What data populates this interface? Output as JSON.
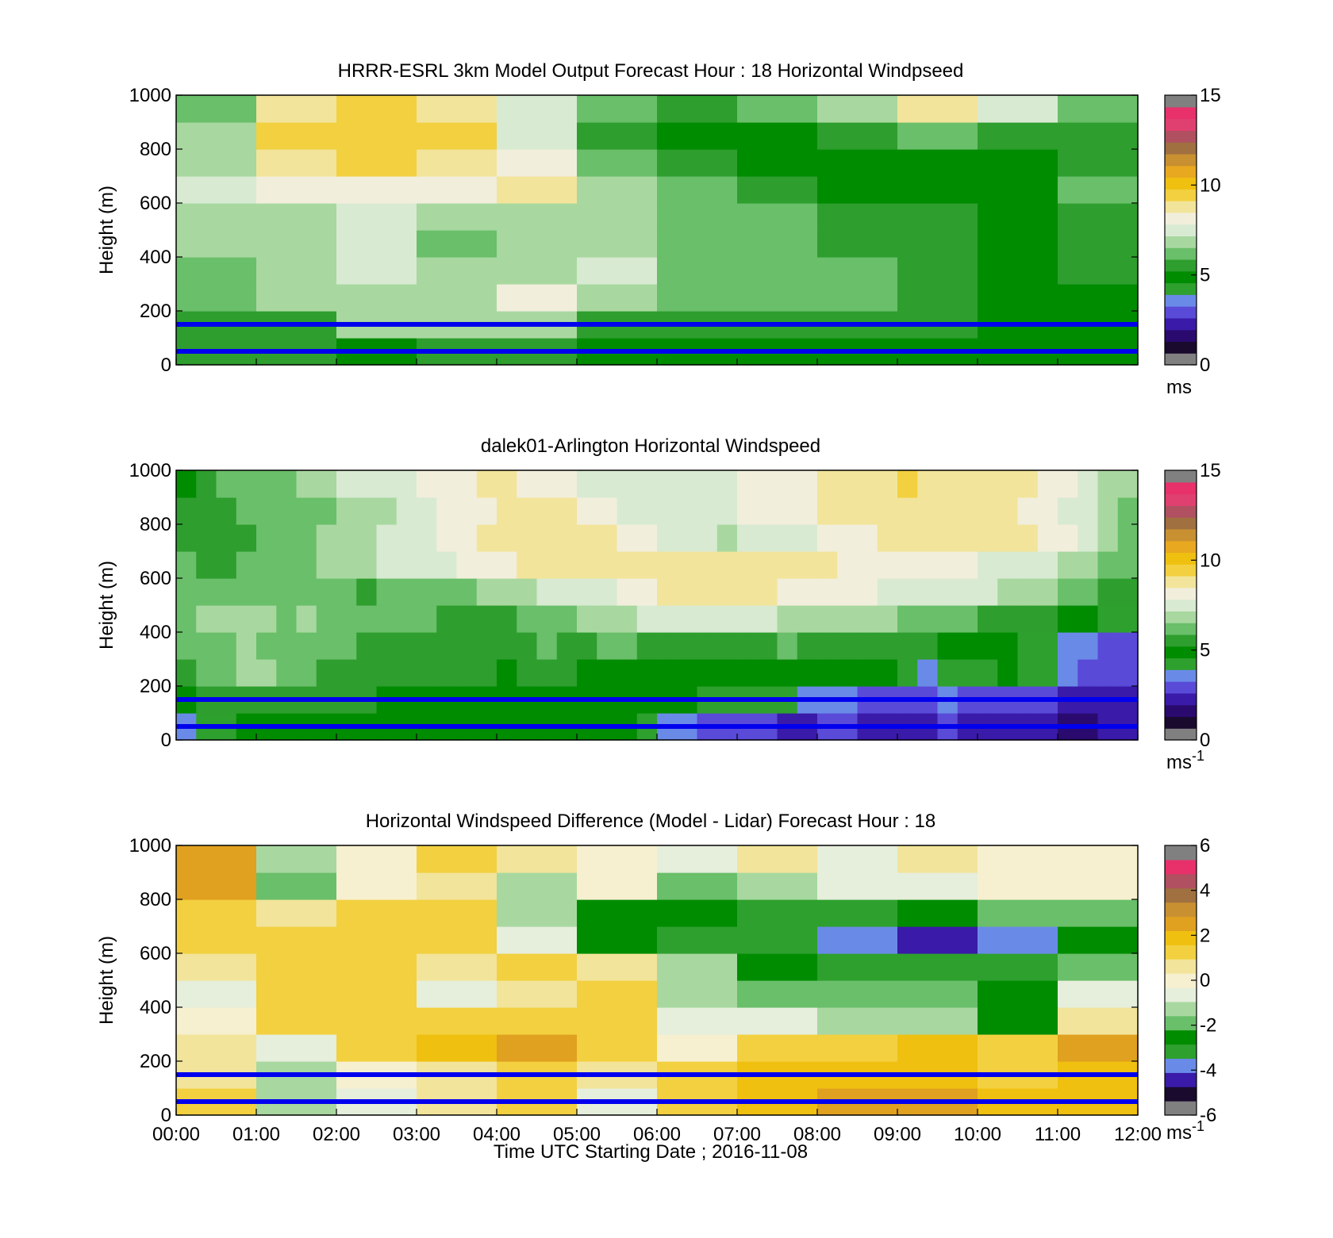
{
  "colormap_speed": [
    "#808080",
    "#1a0a2e",
    "#2a0a6e",
    "#3a1aa8",
    "#5a4ad8",
    "#6a8ae8",
    "#2ea02e",
    "#008c00",
    "#2e9e2e",
    "#6abf6a",
    "#a8d8a0",
    "#d8ead2",
    "#f2eedc",
    "#f2e49a",
    "#f2d040",
    "#f0c010",
    "#e8a820",
    "#c89030",
    "#a07040",
    "#b05060",
    "#e04070",
    "#e8306a",
    "#808080"
  ],
  "colormap_diff": [
    "#808080",
    "#1a0a2e",
    "#3a1aa8",
    "#6a8ae8",
    "#2ea02e",
    "#008c00",
    "#6abf6a",
    "#a8d8a0",
    "#e6eedc",
    "#f6f0d0",
    "#f2e49a",
    "#f2d040",
    "#f0c010",
    "#e0a020",
    "#c89030",
    "#a07040",
    "#b05060",
    "#e8306a",
    "#808080"
  ],
  "line_color": "#0000ee",
  "panels": [
    {
      "id": "model",
      "title": "HRRR-ESRL 3km Model Output   Forecast Hour : 18 Horizontal Windpseed",
      "ylabel": "Height (m)",
      "yticks": [
        "1000",
        "800",
        "600",
        "400",
        "200",
        "0"
      ],
      "xticks": [],
      "xlabel": "",
      "colorbar_ticks": [
        "15",
        "10",
        "5",
        "0"
      ],
      "colorbar_unit": "ms",
      "colorbar_exp": "",
      "chart_data": {
        "type": "heatmap",
        "x_start": "00:00",
        "x_end": "12:00",
        "ylim": [
          0,
          1000
        ],
        "clim": [
          0,
          15
        ],
        "columns": 12,
        "rows_bottom_to_top_height_m": [
          0,
          100,
          200,
          300,
          400,
          500,
          600,
          700,
          800,
          900
        ],
        "values": [
          [
            5.5,
            5.4,
            4.9,
            5.2,
            5.0,
            4.8,
            4.9,
            4.9,
            4.8,
            4.8,
            4.8,
            4.6
          ],
          [
            5.3,
            5.4,
            6.7,
            6.9,
            6.9,
            5.6,
            5.3,
            5.2,
            5.1,
            5.1,
            4.8,
            4.7
          ],
          [
            6.0,
            6.5,
            7.1,
            6.9,
            7.9,
            6.7,
            6.0,
            5.8,
            5.9,
            5.3,
            4.7,
            4.9
          ],
          [
            6.3,
            6.8,
            7.8,
            6.5,
            6.9,
            7.5,
            6.2,
            6.0,
            6.1,
            5.5,
            4.7,
            5.0
          ],
          [
            6.6,
            6.9,
            7.5,
            6.4,
            6.8,
            6.9,
            6.4,
            5.9,
            5.5,
            5.2,
            4.7,
            5.2
          ],
          [
            6.8,
            6.8,
            7.6,
            6.7,
            6.8,
            6.8,
            6.2,
            5.8,
            5.5,
            5.2,
            4.7,
            5.5
          ],
          [
            7.5,
            8.4,
            8.4,
            8.4,
            8.8,
            7.0,
            6.0,
            5.3,
            4.6,
            4.6,
            4.6,
            5.9
          ],
          [
            6.9,
            9.0,
            9.3,
            9.2,
            8.1,
            6.3,
            5.5,
            4.4,
            4.4,
            4.5,
            4.5,
            5.2
          ],
          [
            6.5,
            9.4,
            9.6,
            9.4,
            7.7,
            5.6,
            4.6,
            4.5,
            5.3,
            5.9,
            5.2,
            5.2
          ],
          [
            6.1,
            8.8,
            9.6,
            9.0,
            7.2,
            6.2,
            5.6,
            6.0,
            7.0,
            8.9,
            7.4,
            6.4
          ]
        ]
      },
      "hlines_m": [
        150,
        50
      ]
    },
    {
      "id": "lidar",
      "title": "dalek01-Arlington  Horizontal Windspeed",
      "ylabel": "Height (m)",
      "yticks": [
        "1000",
        "800",
        "600",
        "400",
        "200",
        "0"
      ],
      "xticks": [],
      "xlabel": "",
      "colorbar_ticks": [
        "15",
        "10",
        "5",
        "0"
      ],
      "colorbar_unit": "ms",
      "colorbar_exp": "-1",
      "chart_data": {
        "type": "heatmap",
        "x_start": "00:00",
        "x_end": "12:00",
        "ylim": [
          0,
          1000
        ],
        "clim": [
          0,
          15
        ],
        "columns": 48,
        "rows_bottom_to_top_height_m": [
          0,
          100,
          200,
          300,
          400,
          500,
          600,
          700,
          800,
          900
        ],
        "values": [
          [
            3.5,
            4.0,
            4.2,
            4.5,
            4.8,
            4.6,
            4.7,
            4.5,
            4.6,
            4.8,
            4.6,
            4.4,
            4.9,
            4.6,
            4.7,
            4.5,
            4.6,
            4.5,
            4.7,
            4.5,
            4.5,
            4.6,
            4.3,
            4.0,
            3.2,
            3.0,
            2.6,
            2.4,
            2.5,
            2.3,
            2.1,
            2.0,
            2.2,
            2.2,
            2.1,
            2.0,
            1.8,
            1.7,
            2.2,
            1.8,
            2.0,
            1.5,
            1.6,
            1.6,
            1.4,
            1.3,
            1.5,
            1.7
          ],
          [
            4.8,
            5.0,
            5.2,
            5.4,
            5.3,
            5.0,
            5.1,
            5.0,
            5.2,
            5.1,
            4.9,
            4.8,
            4.9,
            4.8,
            4.7,
            4.8,
            4.7,
            4.6,
            4.6,
            4.6,
            4.5,
            4.6,
            4.5,
            4.5,
            4.3,
            4.3,
            4.2,
            4.2,
            4.1,
            4.0,
            3.8,
            3.5,
            3.3,
            3.0,
            2.8,
            2.6,
            2.8,
            2.5,
            2.9,
            2.4,
            2.6,
            2.4,
            2.2,
            2.3,
            2.1,
            1.9,
            2.0,
            2.1
          ],
          [
            5.6,
            5.8,
            6.2,
            6.8,
            6.6,
            6.0,
            5.8,
            5.6,
            5.7,
            5.5,
            5.4,
            5.2,
            5.3,
            5.2,
            5.0,
            5.0,
            4.9,
            5.0,
            5.1,
            5.0,
            4.9,
            4.8,
            4.9,
            4.7,
            4.6,
            4.7,
            4.6,
            4.7,
            4.5,
            4.6,
            4.6,
            4.4,
            4.5,
            4.4,
            4.6,
            4.3,
            3.8,
            3.4,
            4.2,
            3.6,
            3.8,
            4.5,
            4.0,
            3.6,
            3.0,
            2.6,
            2.4,
            2.8
          ],
          [
            6.0,
            6.2,
            6.4,
            6.6,
            6.4,
            6.2,
            6.3,
            6.0,
            5.8,
            5.7,
            5.6,
            5.5,
            5.6,
            5.4,
            5.4,
            5.3,
            5.3,
            5.6,
            5.8,
            5.6,
            5.5,
            6.0,
            5.9,
            5.4,
            5.0,
            5.1,
            5.3,
            5.4,
            5.6,
            5.6,
            5.8,
            5.7,
            5.6,
            5.5,
            5.4,
            5.3,
            5.2,
            5.0,
            4.9,
            4.7,
            4.5,
            4.3,
            4.2,
            4.0,
            3.5,
            3.0,
            2.5,
            2.2
          ],
          [
            6.4,
            6.5,
            6.6,
            6.7,
            6.6,
            6.4,
            6.5,
            6.2,
            6.1,
            6.0,
            5.9,
            5.8,
            5.8,
            5.7,
            5.6,
            5.5,
            5.5,
            5.8,
            6.2,
            6.4,
            6.6,
            6.8,
            7.0,
            7.2,
            7.4,
            7.5,
            7.6,
            7.4,
            7.3,
            7.2,
            7.0,
            6.9,
            6.8,
            6.7,
            6.6,
            6.5,
            6.4,
            6.2,
            6.0,
            5.8,
            5.6,
            5.4,
            5.2,
            5.0,
            4.8,
            4.6,
            4.2,
            3.6
          ],
          [
            6.2,
            6.0,
            6.1,
            6.3,
            6.2,
            6.0,
            6.1,
            5.9,
            5.8,
            5.7,
            5.8,
            6.0,
            6.1,
            6.2,
            6.4,
            6.6,
            6.8,
            7.0,
            7.2,
            7.4,
            7.6,
            7.8,
            8.2,
            8.4,
            8.6,
            8.7,
            8.9,
            9.0,
            8.8,
            8.7,
            8.5,
            8.4,
            8.2,
            8.0,
            7.9,
            7.8,
            7.7,
            7.6,
            7.5,
            7.4,
            7.2,
            7.0,
            6.8,
            6.6,
            6.4,
            6.0,
            5.6,
            5.2
          ],
          [
            5.8,
            5.6,
            5.7,
            5.8,
            6.0,
            6.2,
            6.4,
            6.6,
            6.8,
            7.0,
            7.2,
            7.4,
            7.6,
            7.8,
            8.0,
            8.3,
            8.5,
            8.7,
            8.9,
            9.0,
            9.1,
            9.0,
            8.9,
            8.8,
            8.7,
            8.9,
            9.0,
            9.1,
            9.0,
            8.9,
            8.8,
            8.7,
            8.6,
            8.5,
            8.4,
            8.3,
            8.2,
            8.1,
            8.0,
            7.9,
            7.8,
            7.6,
            7.4,
            7.2,
            7.0,
            6.8,
            6.4,
            6.0
          ],
          [
            5.5,
            5.4,
            5.6,
            5.7,
            5.9,
            6.1,
            6.3,
            6.5,
            6.7,
            7.0,
            7.2,
            7.5,
            7.8,
            8.0,
            8.3,
            8.6,
            8.9,
            9.0,
            9.2,
            9.0,
            8.8,
            8.6,
            8.2,
            7.9,
            7.6,
            7.4,
            7.2,
            7.0,
            7.2,
            7.4,
            7.6,
            7.8,
            8.0,
            8.2,
            8.4,
            8.6,
            8.8,
            8.9,
            9.0,
            8.9,
            8.8,
            8.7,
            8.6,
            8.4,
            8.0,
            7.5,
            6.8,
            6.0
          ],
          [
            5.3,
            5.5,
            5.7,
            6.0,
            5.8,
            6.0,
            6.2,
            6.4,
            6.6,
            6.8,
            7.0,
            7.3,
            7.6,
            7.9,
            8.2,
            8.4,
            8.6,
            8.8,
            8.9,
            8.6,
            8.3,
            8.0,
            7.7,
            7.5,
            7.3,
            7.4,
            7.5,
            7.7,
            7.9,
            8.1,
            8.3,
            8.5,
            8.7,
            8.9,
            9.0,
            9.1,
            9.2,
            9.1,
            9.0,
            8.9,
            8.8,
            8.6,
            8.4,
            8.2,
            7.8,
            7.4,
            6.8,
            5.8
          ],
          [
            4.6,
            5.2,
            5.8,
            6.4,
            6.0,
            6.2,
            6.6,
            7.0,
            7.2,
            7.4,
            7.6,
            7.8,
            8.0,
            8.2,
            8.4,
            8.6,
            8.6,
            8.4,
            8.2,
            8.0,
            7.8,
            7.6,
            7.5,
            7.4,
            7.3,
            7.4,
            7.5,
            7.7,
            7.9,
            8.1,
            8.3,
            8.5,
            8.7,
            8.9,
            9.0,
            9.2,
            9.3,
            9.2,
            9.1,
            9.0,
            8.9,
            8.8,
            8.6,
            8.4,
            8.0,
            7.6,
            7.0,
            6.6
          ]
        ]
      },
      "hlines_m": [
        150,
        50
      ]
    },
    {
      "id": "diff",
      "title": "Horizontal Windspeed Difference (Model - Lidar) Forecast Hour : 18",
      "ylabel": "Height (m)",
      "yticks": [
        "1000",
        "800",
        "600",
        "400",
        "200",
        "0"
      ],
      "xticks": [
        "00:00",
        "01:00",
        "02:00",
        "03:00",
        "04:00",
        "05:00",
        "06:00",
        "07:00",
        "08:00",
        "09:00",
        "10:00",
        "11:00",
        "12:00"
      ],
      "xlabel": "Time UTC  Starting Date ; 2016-11-08",
      "colorbar_ticks": [
        "6",
        "4",
        "2",
        "0",
        "-2",
        "-4",
        "-6"
      ],
      "colorbar_unit": "ms",
      "colorbar_exp": "-1",
      "chart_data": {
        "type": "heatmap",
        "x_start": "00:00",
        "x_end": "12:00",
        "ylim": [
          0,
          1000
        ],
        "clim": [
          -6,
          6
        ],
        "columns": 12,
        "rows_bottom_to_top_height_m": [
          0,
          100,
          200,
          300,
          400,
          500,
          600,
          700,
          800,
          900
        ],
        "values": [
          [
            1.5,
            -1.5,
            -0.8,
            0.5,
            1.2,
            -0.5,
            1.2,
            1.8,
            2.5,
            2.5,
            2.2,
            2.0
          ],
          [
            0.4,
            -1.2,
            -0.2,
            1.0,
            1.4,
            1.0,
            1.4,
            1.8,
            1.8,
            2.2,
            1.4,
            2.2
          ],
          [
            0.6,
            -0.6,
            1.6,
            2.0,
            2.6,
            1.4,
            0.2,
            1.2,
            1.4,
            1.8,
            1.2,
            2.6
          ],
          [
            0.2,
            1.2,
            1.6,
            1.4,
            1.2,
            1.4,
            -0.5,
            -1.0,
            -1.2,
            -1.4,
            -2.8,
            0.4
          ],
          [
            -0.5,
            1.2,
            1.6,
            -0.4,
            0.8,
            1.4,
            -1.2,
            -2.4,
            -1.8,
            -2.4,
            -3.0,
            -0.5
          ],
          [
            1.0,
            1.4,
            1.4,
            0.6,
            1.2,
            1.0,
            -1.4,
            -2.8,
            -3.2,
            -3.4,
            -3.2,
            -1.8
          ],
          [
            1.4,
            1.2,
            1.4,
            1.2,
            -0.8,
            -2.8,
            -3.2,
            -3.8,
            -4.4,
            -4.6,
            -4.2,
            -2.6
          ],
          [
            1.2,
            0.4,
            1.6,
            1.2,
            -1.2,
            -3.0,
            -2.8,
            -3.6,
            -3.4,
            -2.6,
            -2.4,
            -1.8
          ],
          [
            2.6,
            -2.4,
            0.0,
            1.0,
            -1.2,
            0.0,
            -2.0,
            -1.4,
            -1.0,
            -0.6,
            0.0,
            0.0
          ],
          [
            2.8,
            -1.6,
            0.0,
            1.2,
            0.8,
            0.0,
            -0.8,
            0.8,
            -0.5,
            0.6,
            0.0,
            0.0
          ]
        ]
      },
      "hlines_m": [
        150,
        50
      ]
    }
  ]
}
